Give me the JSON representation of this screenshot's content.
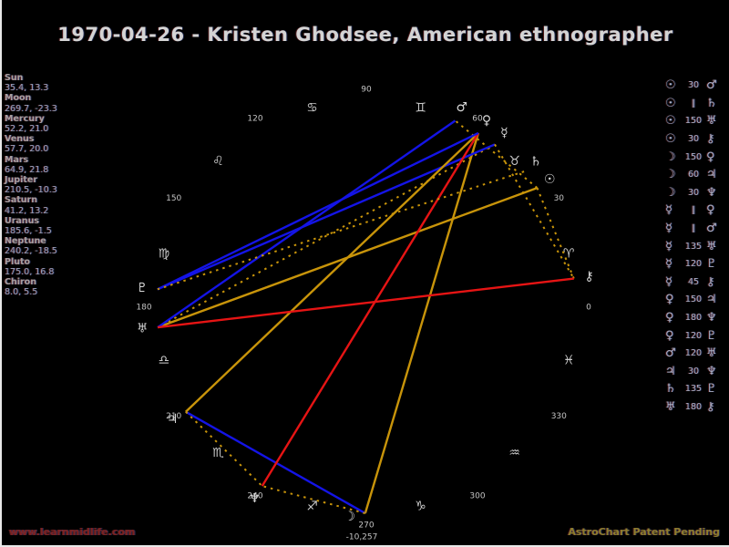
{
  "title": "1970-04-26 - Kristen Ghodsee, American ethnographer",
  "footer": {
    "left": "www.learnmidlife.com",
    "right": "AstroChart Patent Pending"
  },
  "colors": {
    "gold": "#C8940A",
    "blue": "#1414E6",
    "red": "#E61414",
    "panel_name": "#a79f9f",
    "panel_value": "#9aa2ba",
    "tick": "#c4c4c4",
    "sign_glyph": "#cccccc",
    "planet_glyph": "#d8d8d8",
    "title_text": "#d4d4d4"
  },
  "planets_panel": [
    {
      "name": "Sun",
      "value": "35.4, 13.3"
    },
    {
      "name": "Moon",
      "value": "269.7, -23.3"
    },
    {
      "name": "Mercury",
      "value": "52.2, 21.0"
    },
    {
      "name": "Venus",
      "value": "57.7, 20.0"
    },
    {
      "name": "Mars",
      "value": "64.9, 21.8"
    },
    {
      "name": "Jupiter",
      "value": "210.5, -10.3"
    },
    {
      "name": "Saturn",
      "value": "41.2, 13.2"
    },
    {
      "name": "Uranus",
      "value": "185.6, -1.5"
    },
    {
      "name": "Neptune",
      "value": "240.2, -18.5"
    },
    {
      "name": "Pluto",
      "value": "175.0, 16.8"
    },
    {
      "name": "Chiron",
      "value": "8.0, 5.5"
    }
  ],
  "aspects_panel": [
    {
      "p1": "☉",
      "aspect": "30",
      "p2": "♂"
    },
    {
      "p1": "☉",
      "aspect": "∥",
      "p2": "♄"
    },
    {
      "p1": "☉",
      "aspect": "150",
      "p2": "♅"
    },
    {
      "p1": "☉",
      "aspect": "30",
      "p2": "⚷"
    },
    {
      "p1": "☽",
      "aspect": "150",
      "p2": "♀"
    },
    {
      "p1": "☽",
      "aspect": "60",
      "p2": "♃"
    },
    {
      "p1": "☽",
      "aspect": "30",
      "p2": "♆"
    },
    {
      "p1": "☿",
      "aspect": "∥",
      "p2": "♀"
    },
    {
      "p1": "☿",
      "aspect": "∥",
      "p2": "♂"
    },
    {
      "p1": "☿",
      "aspect": "135",
      "p2": "♅"
    },
    {
      "p1": "☿",
      "aspect": "120",
      "p2": "♇"
    },
    {
      "p1": "☿",
      "aspect": "45",
      "p2": "⚷"
    },
    {
      "p1": "♀",
      "aspect": "150",
      "p2": "♃"
    },
    {
      "p1": "♀",
      "aspect": "180",
      "p2": "♆"
    },
    {
      "p1": "♀",
      "aspect": "120",
      "p2": "♇"
    },
    {
      "p1": "♂",
      "aspect": "120",
      "p2": "♅"
    },
    {
      "p1": "♃",
      "aspect": "30",
      "p2": "♆"
    },
    {
      "p1": "♄",
      "aspect": "135",
      "p2": "♇"
    },
    {
      "p1": "♅",
      "aspect": "180",
      "p2": "⚷"
    }
  ],
  "chart_data": {
    "type": "astrological-aspect-wheel",
    "tick_labels": [
      {
        "label": "0",
        "angle": 0
      },
      {
        "label": "30",
        "angle": 30
      },
      {
        "label": "60",
        "angle": 60
      },
      {
        "label": "90",
        "angle": 90
      },
      {
        "label": "120",
        "angle": 120
      },
      {
        "label": "150",
        "angle": 150
      },
      {
        "label": "180",
        "angle": 180
      },
      {
        "label": "210",
        "angle": 210
      },
      {
        "label": "240",
        "angle": 240
      },
      {
        "label": "270",
        "angle": 270
      },
      {
        "label": "300",
        "angle": 300
      },
      {
        "label": "330",
        "angle": 330
      }
    ],
    "zodiac_signs": [
      {
        "name": "aries",
        "glyph": "♈",
        "angle": 15
      },
      {
        "name": "taurus",
        "glyph": "♉",
        "angle": 45
      },
      {
        "name": "gemini",
        "glyph": "♊",
        "angle": 75
      },
      {
        "name": "cancer",
        "glyph": "♋",
        "angle": 105
      },
      {
        "name": "leo",
        "glyph": "♌",
        "angle": 135
      },
      {
        "name": "virgo",
        "glyph": "♍",
        "angle": 165
      },
      {
        "name": "libra",
        "glyph": "♎",
        "angle": 195
      },
      {
        "name": "scorpio",
        "glyph": "♏",
        "angle": 225
      },
      {
        "name": "sagittarius",
        "glyph": "♐",
        "angle": 255
      },
      {
        "name": "capricorn",
        "glyph": "♑",
        "angle": 285
      },
      {
        "name": "aquarius",
        "glyph": "♒",
        "angle": 315
      },
      {
        "name": "pisces",
        "glyph": "♓",
        "angle": 345
      }
    ],
    "planets": [
      {
        "name": "sun",
        "glyph": "☉",
        "longitude": 35.4,
        "declination": 13.3
      },
      {
        "name": "moon",
        "glyph": "☽",
        "longitude": 269.7,
        "declination": -23.3
      },
      {
        "name": "mercury",
        "glyph": "☿",
        "longitude": 52.2,
        "declination": 21.0
      },
      {
        "name": "venus",
        "glyph": "♀",
        "longitude": 57.7,
        "declination": 20.0
      },
      {
        "name": "mars",
        "glyph": "♂",
        "longitude": 64.9,
        "declination": 21.8
      },
      {
        "name": "jupiter",
        "glyph": "♃",
        "longitude": 210.5,
        "declination": -10.3
      },
      {
        "name": "saturn",
        "glyph": "♄",
        "longitude": 41.2,
        "declination": 13.2
      },
      {
        "name": "uranus",
        "glyph": "♅",
        "longitude": 185.6,
        "declination": -1.5
      },
      {
        "name": "neptune",
        "glyph": "♆",
        "longitude": 240.2,
        "declination": -18.5
      },
      {
        "name": "pluto",
        "glyph": "♇",
        "longitude": 175.0,
        "declination": 16.8
      },
      {
        "name": "chiron",
        "glyph": "⚷",
        "longitude": 8.0,
        "declination": 5.5
      }
    ],
    "aspect_lines": [
      {
        "from": "sun",
        "to": "mars",
        "aspect": 30,
        "style": "gold-dashed"
      },
      {
        "from": "sun",
        "to": "uranus",
        "aspect": 150,
        "style": "gold"
      },
      {
        "from": "sun",
        "to": "chiron",
        "aspect": 30,
        "style": "gold-dashed"
      },
      {
        "from": "moon",
        "to": "venus",
        "aspect": 150,
        "style": "gold"
      },
      {
        "from": "moon",
        "to": "jupiter",
        "aspect": 60,
        "style": "blue"
      },
      {
        "from": "moon",
        "to": "neptune",
        "aspect": 30,
        "style": "gold-dashed"
      },
      {
        "from": "mercury",
        "to": "uranus",
        "aspect": 135,
        "style": "gold-dashed"
      },
      {
        "from": "mercury",
        "to": "pluto",
        "aspect": 120,
        "style": "blue"
      },
      {
        "from": "mercury",
        "to": "chiron",
        "aspect": 45,
        "style": "gold-dashed"
      },
      {
        "from": "venus",
        "to": "jupiter",
        "aspect": 150,
        "style": "gold"
      },
      {
        "from": "venus",
        "to": "neptune",
        "aspect": 180,
        "style": "red"
      },
      {
        "from": "venus",
        "to": "pluto",
        "aspect": 120,
        "style": "blue"
      },
      {
        "from": "mars",
        "to": "uranus",
        "aspect": 120,
        "style": "blue"
      },
      {
        "from": "jupiter",
        "to": "neptune",
        "aspect": 30,
        "style": "gold-dashed"
      },
      {
        "from": "saturn",
        "to": "pluto",
        "aspect": 135,
        "style": "gold-dashed"
      },
      {
        "from": "uranus",
        "to": "chiron",
        "aspect": 180,
        "style": "red"
      }
    ],
    "bottom_label": "-10,257"
  }
}
